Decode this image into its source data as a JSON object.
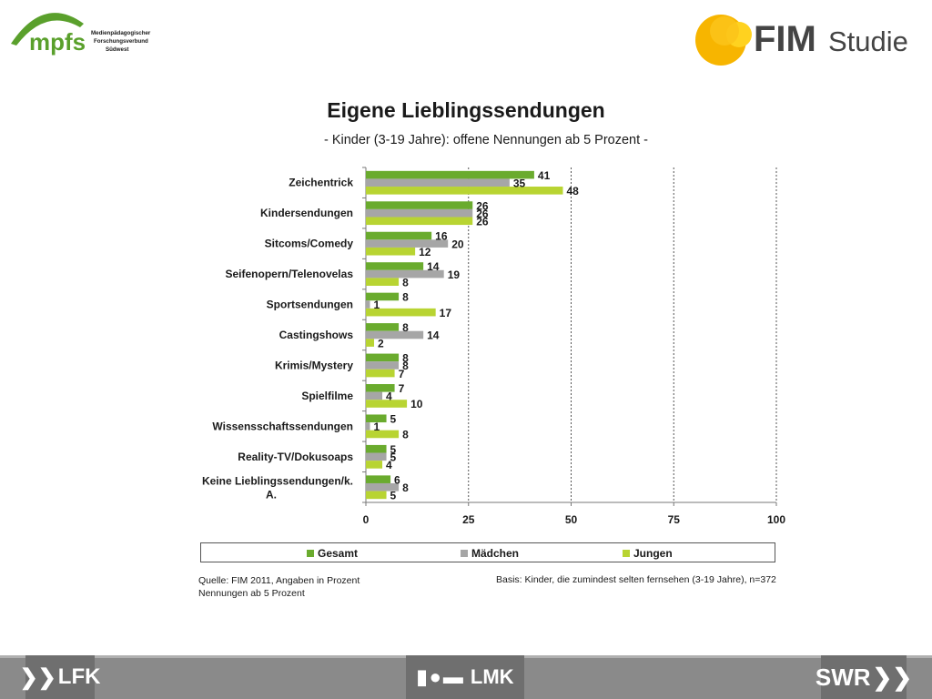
{
  "logos": {
    "mpfs": {
      "name": "mpfs",
      "line1": "Medienpädagogischer",
      "line2": "Forschungsverbund",
      "line3": "Südwest"
    },
    "fim": {
      "name_bold": "FIM",
      "name_light": "Studie"
    }
  },
  "colors": {
    "gesamt": "#6aab2e",
    "maedchen": "#a6a6a6",
    "jungen": "#b8d432",
    "logo_green": "#5aa02c",
    "logo_orange": "#f7b500",
    "logo_yellow": "#ffd21f"
  },
  "chart_data": {
    "type": "bar",
    "orientation": "horizontal",
    "title": "Eigene Lieblingssendungen",
    "subtitle": "- Kinder (3-19 Jahre): offene Nennungen ab 5 Prozent -",
    "categories": [
      "Zeichentrick",
      "Kindersendungen",
      "Sitcoms/Comedy",
      "Seifenopern/Telenovelas",
      "Sportsendungen",
      "Castingshows",
      "Krimis/Mystery",
      "Spielfilme",
      "Wissensschaftssendungen",
      "Reality-TV/Dokusoaps",
      "Keine Lieblingssendungen/k. A."
    ],
    "category_label_lines": [
      [
        "Zeichentrick"
      ],
      [
        "Kindersendungen"
      ],
      [
        "Sitcoms/Comedy"
      ],
      [
        "Seifenopern/Telenovelas"
      ],
      [
        "Sportsendungen"
      ],
      [
        "Castingshows"
      ],
      [
        "Krimis/Mystery"
      ],
      [
        "Spielfilme"
      ],
      [
        "Wissensschaftssendungen"
      ],
      [
        "Reality-TV/Dokusoaps"
      ],
      [
        "Keine Lieblingssendungen/k.",
        "A."
      ]
    ],
    "series": [
      {
        "name": "Gesamt",
        "values": [
          41,
          26,
          16,
          14,
          8,
          8,
          8,
          7,
          5,
          5,
          6
        ]
      },
      {
        "name": "Mädchen",
        "values": [
          35,
          26,
          20,
          19,
          1,
          14,
          8,
          4,
          1,
          5,
          8
        ]
      },
      {
        "name": "Jungen",
        "values": [
          48,
          26,
          12,
          8,
          17,
          2,
          7,
          10,
          8,
          4,
          5
        ]
      }
    ],
    "xlim": [
      0,
      100
    ],
    "xticks": [
      0,
      25,
      50,
      75,
      100
    ],
    "grid": "vertical dashed",
    "legend": "bottom"
  },
  "footer": {
    "source_line1": "Quelle: FIM 2011,  Angaben in Prozent",
    "source_line2": "Nennungen ab 5 Prozent",
    "basis": "Basis: Kinder, die zumindest selten fernsehen (3-19 Jahre), n=372"
  },
  "bottom_logos": {
    "lfk": "LFK",
    "lmk": "LMK",
    "swr": "SWR"
  }
}
